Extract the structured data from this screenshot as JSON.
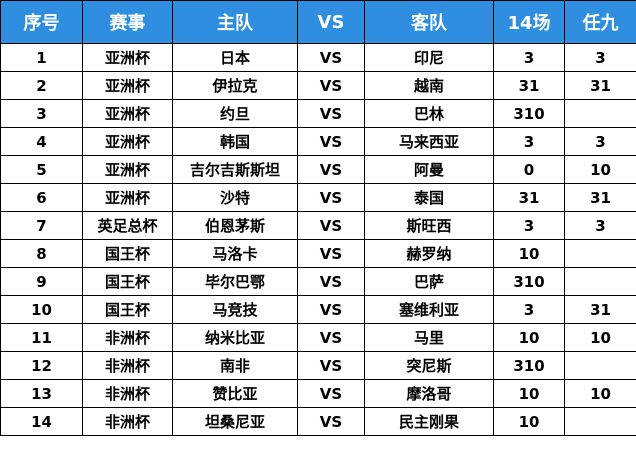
{
  "headers": {
    "no": "序号",
    "event": "赛事",
    "home": "主队",
    "vs": "VS",
    "away": "客队",
    "pick14": "14场",
    "ren9": "任九"
  },
  "colors": {
    "header_bg": "#2f8ee0",
    "header_text": "#ffffff",
    "grid": "#000000"
  },
  "rows": [
    {
      "no": "1",
      "event": "亚洲杯",
      "home": "日本",
      "vs": "VS",
      "away": "印尼",
      "pick14": "3",
      "ren9": "3"
    },
    {
      "no": "2",
      "event": "亚洲杯",
      "home": "伊拉克",
      "vs": "VS",
      "away": "越南",
      "pick14": "31",
      "ren9": "31"
    },
    {
      "no": "3",
      "event": "亚洲杯",
      "home": "约旦",
      "vs": "VS",
      "away": "巴林",
      "pick14": "310",
      "ren9": ""
    },
    {
      "no": "4",
      "event": "亚洲杯",
      "home": "韩国",
      "vs": "VS",
      "away": "马来西亚",
      "pick14": "3",
      "ren9": "3"
    },
    {
      "no": "5",
      "event": "亚洲杯",
      "home": "吉尔吉斯斯坦",
      "vs": "VS",
      "away": "阿曼",
      "pick14": "0",
      "ren9": "10"
    },
    {
      "no": "6",
      "event": "亚洲杯",
      "home": "沙特",
      "vs": "VS",
      "away": "泰国",
      "pick14": "31",
      "ren9": "31"
    },
    {
      "no": "7",
      "event": "英足总杯",
      "home": "伯恩茅斯",
      "vs": "VS",
      "away": "斯旺西",
      "pick14": "3",
      "ren9": "3"
    },
    {
      "no": "8",
      "event": "国王杯",
      "home": "马洛卡",
      "vs": "VS",
      "away": "赫罗纳",
      "pick14": "10",
      "ren9": ""
    },
    {
      "no": "9",
      "event": "国王杯",
      "home": "毕尔巴鄂",
      "vs": "VS",
      "away": "巴萨",
      "pick14": "310",
      "ren9": ""
    },
    {
      "no": "10",
      "event": "国王杯",
      "home": "马竞技",
      "vs": "VS",
      "away": "塞维利亚",
      "pick14": "3",
      "ren9": "31"
    },
    {
      "no": "11",
      "event": "非洲杯",
      "home": "纳米比亚",
      "vs": "VS",
      "away": "马里",
      "pick14": "10",
      "ren9": "10"
    },
    {
      "no": "12",
      "event": "非洲杯",
      "home": "南非",
      "vs": "VS",
      "away": "突尼斯",
      "pick14": "310",
      "ren9": ""
    },
    {
      "no": "13",
      "event": "非洲杯",
      "home": "赞比亚",
      "vs": "VS",
      "away": "摩洛哥",
      "pick14": "10",
      "ren9": "10"
    },
    {
      "no": "14",
      "event": "非洲杯",
      "home": "坦桑尼亚",
      "vs": "VS",
      "away": "民主刚果",
      "pick14": "10",
      "ren9": ""
    }
  ]
}
